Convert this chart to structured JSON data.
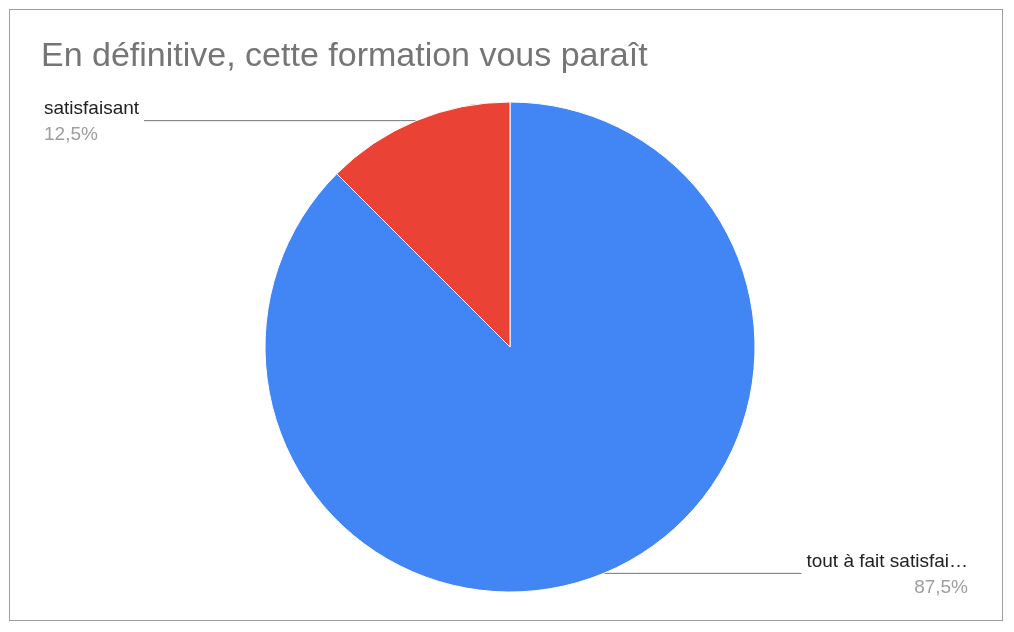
{
  "chart_data": {
    "type": "pie",
    "title": "En définitive, cette formation vous paraît",
    "categories": [
      "tout à fait satisfai…",
      "satisfaisant"
    ],
    "values": [
      87.5,
      12.5
    ],
    "colors": [
      "#4285f4",
      "#ea4335"
    ],
    "value_labels": [
      "87,5%",
      "12,5%"
    ]
  }
}
